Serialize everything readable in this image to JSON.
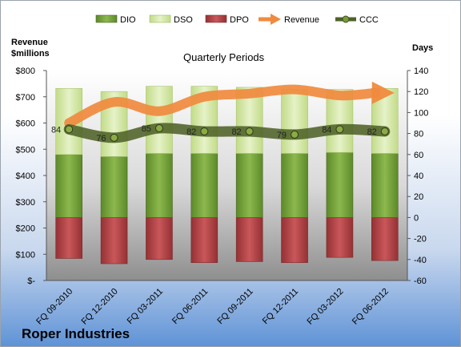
{
  "chart_data": {
    "type": "bar",
    "title": "Quarterly Periods",
    "company": "Roper Industries",
    "left_axis_label": [
      "Revenue",
      "$millions"
    ],
    "right_axis_label": "Days",
    "left_ylim": [
      0,
      800
    ],
    "left_ticks": [
      "$-",
      "$100",
      "$200",
      "$300",
      "$400",
      "$500",
      "$600",
      "$700",
      "$800"
    ],
    "right_ylim": [
      -60,
      140
    ],
    "right_ticks": [
      "-60",
      "-40",
      "-20",
      "0",
      "20",
      "40",
      "60",
      "80",
      "100",
      "120",
      "140"
    ],
    "categories": [
      "FQ 09-2010",
      "FQ 12-2010",
      "FQ 03-2011",
      "FQ 06-2011",
      "FQ 09-2011",
      "FQ 12-2011",
      "FQ 03-2012",
      "FQ 06-2012"
    ],
    "legend": [
      "DIO",
      "DSO",
      "DPO",
      "Revenue",
      "CCC"
    ],
    "series": [
      {
        "name": "DIO",
        "axis": "right",
        "values": [
          60,
          58,
          61,
          61,
          61,
          61,
          62,
          61
        ]
      },
      {
        "name": "DSO",
        "axis": "right",
        "values": [
          63,
          62,
          64,
          64,
          63,
          61,
          60,
          62
        ]
      },
      {
        "name": "DPO",
        "axis": "right",
        "values": [
          -39,
          -44,
          -40,
          -43,
          -42,
          -43,
          -38,
          -41
        ]
      },
      {
        "name": "Revenue",
        "axis": "left",
        "values": [
          600,
          680,
          645,
          700,
          712,
          728,
          705,
          715
        ]
      },
      {
        "name": "CCC",
        "axis": "right",
        "values": [
          84,
          76,
          85,
          82,
          82,
          79,
          84,
          82
        ]
      }
    ],
    "ccc_labels": [
      "84",
      "76",
      "85",
      "82",
      "82",
      "79",
      "84",
      "82"
    ],
    "colors": {
      "DIO": "#77a13a",
      "DSO": "#d6e8ae",
      "DPO": "#b84548",
      "Revenue": "#f08a3e",
      "CCC": "#4f6228"
    },
    "grid": false,
    "legend_position": "top"
  }
}
